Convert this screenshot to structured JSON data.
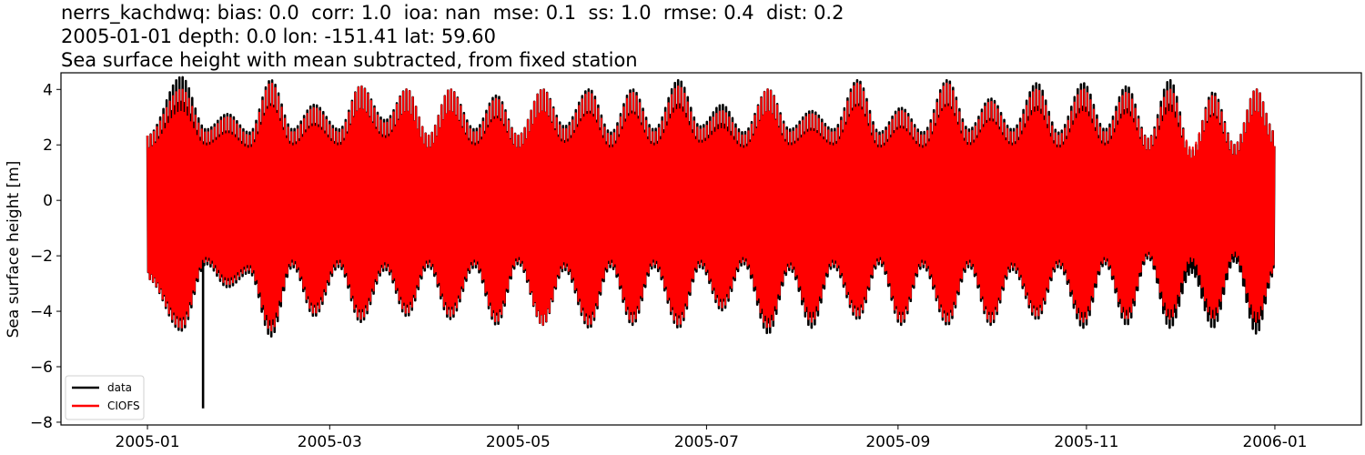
{
  "title": {
    "line1": "nerrs_kachdwq: bias: 0.0  corr: 1.0  ioa: nan  mse: 0.1  ss: 1.0  rmse: 0.4  dist: 0.2",
    "line2": "2005-01-01 depth: 0.0 lon: -151.41 lat: 59.60",
    "line3": "Sea surface height with mean subtracted, from fixed station"
  },
  "colors": {
    "data": "#000000",
    "model": "#ff0000",
    "axes": "#000000"
  },
  "chart_data": {
    "type": "line",
    "title": "nerrs_kachdwq: bias: 0.0  corr: 1.0  ioa: nan  mse: 0.1  ss: 1.0  rmse: 0.4  dist: 0.2 / 2005-01-01 depth: 0.0 lon: -151.41 lat: 59.60 / Sea surface height with mean subtracted, from fixed station",
    "xlabel": "",
    "ylabel": "Sea surface height [m]",
    "xlim": [
      "2004-12-04",
      "2006-01-29"
    ],
    "ylim": [
      -8.1,
      4.6
    ],
    "x_ticks": [
      "2005-01",
      "2005-03",
      "2005-05",
      "2005-07",
      "2005-09",
      "2005-11",
      "2006-01"
    ],
    "y_ticks": [
      4,
      2,
      0,
      -2,
      -4,
      -6,
      -8
    ],
    "y_tick_labels": [
      "4",
      "2",
      "0",
      "−2",
      "−4",
      "−6",
      "−8"
    ],
    "grid": false,
    "legend": {
      "position": "lower left",
      "entries": [
        "data",
        "CIOFS"
      ]
    },
    "series": [
      {
        "name": "data",
        "color": "#000000",
        "description": "Observed tidal sea surface height (semi-diurnal, spring-neap modulated), envelope sampled ~ every 2 weeks",
        "dates": [
          "2005-01-01",
          "2005-01-12",
          "2005-01-20",
          "2005-01-27",
          "2005-02-03",
          "2005-02-10",
          "2005-02-17",
          "2005-02-24",
          "2005-03-04",
          "2005-03-11",
          "2005-03-19",
          "2005-03-26",
          "2005-04-02",
          "2005-04-09",
          "2005-04-17",
          "2005-04-24",
          "2005-05-01",
          "2005-05-09",
          "2005-05-16",
          "2005-05-24",
          "2005-05-31",
          "2005-06-07",
          "2005-06-14",
          "2005-06-22",
          "2005-06-29",
          "2005-07-06",
          "2005-07-13",
          "2005-07-21",
          "2005-07-28",
          "2005-08-04",
          "2005-08-11",
          "2005-08-19",
          "2005-08-26",
          "2005-09-02",
          "2005-09-09",
          "2005-09-17",
          "2005-09-24",
          "2005-10-01",
          "2005-10-08",
          "2005-10-16",
          "2005-10-23",
          "2005-10-31",
          "2005-11-07",
          "2005-11-14",
          "2005-11-21",
          "2005-11-28",
          "2005-12-05",
          "2005-12-12",
          "2005-12-19",
          "2005-12-26",
          "2006-01-01"
        ],
        "upper_envelope": [
          2.1,
          4.0,
          2.3,
          2.8,
          2.2,
          3.9,
          2.3,
          3.1,
          2.3,
          3.7,
          2.6,
          3.6,
          2.1,
          3.6,
          2.3,
          3.4,
          2.1,
          3.6,
          2.4,
          3.6,
          2.2,
          3.6,
          2.3,
          3.9,
          2.4,
          3.1,
          2.2,
          3.6,
          2.3,
          2.9,
          2.3,
          3.9,
          2.2,
          3.0,
          2.2,
          3.9,
          2.3,
          3.3,
          2.3,
          3.8,
          2.2,
          3.8,
          2.3,
          3.7,
          2.0,
          3.9,
          1.6,
          3.5,
          1.8,
          3.6,
          2.2
        ],
        "lower_envelope": [
          -2.7,
          -4.5,
          -2.2,
          -3.0,
          -2.5,
          -4.7,
          -2.3,
          -4.0,
          -2.3,
          -4.2,
          -2.4,
          -4.0,
          -2.3,
          -4.1,
          -2.3,
          -4.3,
          -2.2,
          -4.3,
          -2.4,
          -4.4,
          -2.3,
          -4.3,
          -2.3,
          -4.4,
          -2.3,
          -3.8,
          -2.2,
          -4.6,
          -2.4,
          -4.4,
          -2.3,
          -4.1,
          -2.2,
          -4.3,
          -2.3,
          -4.3,
          -2.3,
          -4.3,
          -2.4,
          -4.1,
          -2.3,
          -4.4,
          -2.2,
          -4.3,
          -2.0,
          -4.4,
          -2.5,
          -4.4,
          -2.1,
          -4.6,
          -2.5
        ],
        "outlier": {
          "date": "2005-01-19",
          "value": -7.5
        }
      },
      {
        "name": "CIOFS",
        "color": "#ff0000",
        "description": "Model (CIOFS) sea surface height, closely tracking data with slightly smaller extremes",
        "dates_same_as": "data",
        "upper_envelope": [
          2.1,
          3.6,
          2.2,
          2.7,
          2.1,
          3.8,
          2.2,
          3.0,
          2.2,
          3.7,
          2.5,
          3.6,
          2.1,
          3.6,
          2.2,
          3.3,
          2.1,
          3.6,
          2.3,
          3.5,
          2.1,
          3.5,
          2.2,
          3.7,
          2.3,
          2.9,
          2.1,
          3.6,
          2.2,
          2.8,
          2.2,
          3.8,
          2.1,
          2.9,
          2.1,
          3.8,
          2.2,
          3.2,
          2.2,
          3.6,
          2.1,
          3.6,
          2.2,
          3.5,
          2.0,
          3.6,
          1.7,
          3.4,
          1.8,
          3.6,
          2.2
        ],
        "lower_envelope": [
          -2.7,
          -4.4,
          -2.1,
          -2.9,
          -2.4,
          -4.5,
          -2.2,
          -3.9,
          -2.2,
          -4.1,
          -2.3,
          -3.9,
          -2.2,
          -4.0,
          -2.2,
          -4.2,
          -2.1,
          -4.3,
          -2.3,
          -4.3,
          -2.2,
          -4.2,
          -2.2,
          -4.3,
          -2.2,
          -3.7,
          -2.1,
          -4.4,
          -2.3,
          -4.2,
          -2.2,
          -4.0,
          -2.1,
          -4.2,
          -2.2,
          -4.2,
          -2.2,
          -4.2,
          -2.3,
          -4.0,
          -2.2,
          -4.2,
          -2.1,
          -4.1,
          -1.9,
          -4.1,
          -2.1,
          -4.1,
          -1.9,
          -4.2,
          -2.4
        ]
      }
    ]
  }
}
